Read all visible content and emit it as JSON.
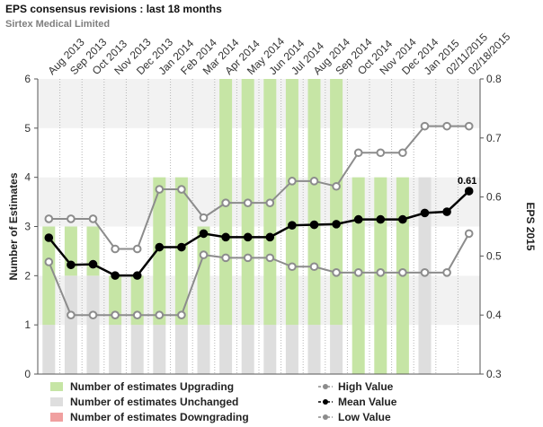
{
  "header": {
    "title": "EPS consensus revisions : last 18 months",
    "subtitle": "Sirtex Medical Limited"
  },
  "chart_data": {
    "type": "bar+line",
    "categories": [
      "Aug 2013",
      "Sep 2013",
      "Oct 2013",
      "Nov 2013",
      "Dec 2013",
      "Jan 2014",
      "Feb 2014",
      "Mar 2014",
      "Apr 2014",
      "May 2014",
      "Jun 2014",
      "Jul 2014",
      "Aug 2014",
      "Sep 2014",
      "Oct 2014",
      "Nov 2014",
      "Dec 2014",
      "Jan 2015",
      "02/11/2015",
      "02/18/2015"
    ],
    "bar_categories": [
      "Aug 2013",
      "Sep 2013",
      "Oct 2013",
      "Nov 2013",
      "Dec 2013",
      "Jan 2014",
      "Feb 2014",
      "Mar 2014",
      "Apr 2014",
      "May 2014",
      "Jun 2014",
      "Jul 2014",
      "Aug 2014",
      "Sep 2014",
      "Oct 2014",
      "Nov 2014",
      "Dec 2014",
      "Jan 2015"
    ],
    "bars": [
      {
        "name": "Number of estimates Upgrading",
        "color": "#c6e5a5",
        "values": [
          2,
          1,
          1,
          1,
          1,
          3,
          3,
          2,
          5,
          5,
          5,
          5,
          5,
          5,
          4,
          4,
          4,
          0
        ]
      },
      {
        "name": "Number of estimates Unchanged",
        "color": "#dedede",
        "values": [
          1,
          2,
          2,
          1,
          1,
          1,
          1,
          1,
          1,
          1,
          1,
          1,
          1,
          1,
          0,
          0,
          0,
          4
        ]
      },
      {
        "name": "Number of estimates Downgrading",
        "color": "#f0a0a0",
        "values": [
          0,
          0,
          0,
          0,
          0,
          0,
          0,
          0,
          0,
          0,
          0,
          0,
          0,
          0,
          0,
          0,
          0,
          0
        ]
      }
    ],
    "lines": [
      {
        "name": "High Value",
        "color": "#8c8c8c",
        "values": [
          0.563,
          0.563,
          0.563,
          0.512,
          0.512,
          0.613,
          0.613,
          0.565,
          0.59,
          0.59,
          0.59,
          0.627,
          0.627,
          0.618,
          0.675,
          0.675,
          0.675,
          0.72,
          0.72,
          0.72
        ]
      },
      {
        "name": "Mean Value",
        "color": "#000000",
        "values": [
          0.531,
          0.485,
          0.486,
          0.467,
          0.467,
          0.515,
          0.515,
          0.538,
          0.532,
          0.532,
          0.532,
          0.552,
          0.553,
          0.554,
          0.562,
          0.562,
          0.562,
          0.573,
          0.575,
          0.61
        ]
      },
      {
        "name": "Low Value",
        "color": "#8c8c8c",
        "values": [
          0.49,
          0.4,
          0.4,
          0.4,
          0.4,
          0.4,
          0.4,
          0.502,
          0.497,
          0.497,
          0.497,
          0.482,
          0.482,
          0.472,
          0.472,
          0.472,
          0.472,
          0.472,
          0.472,
          0.538
        ]
      }
    ],
    "left_axis": {
      "label": "Number of Estimates",
      "ylim": [
        0,
        6
      ],
      "ticks": [
        "0",
        "1",
        "2",
        "3",
        "4",
        "5",
        "6"
      ]
    },
    "right_axis": {
      "label": "EPS 2015",
      "ylim": [
        0.3,
        0.8
      ],
      "ticks": [
        "0.3",
        "0.4",
        "0.5",
        "0.6",
        "0.7",
        "0.8"
      ]
    },
    "annotation": "0.61",
    "legend_position": "bottom"
  }
}
